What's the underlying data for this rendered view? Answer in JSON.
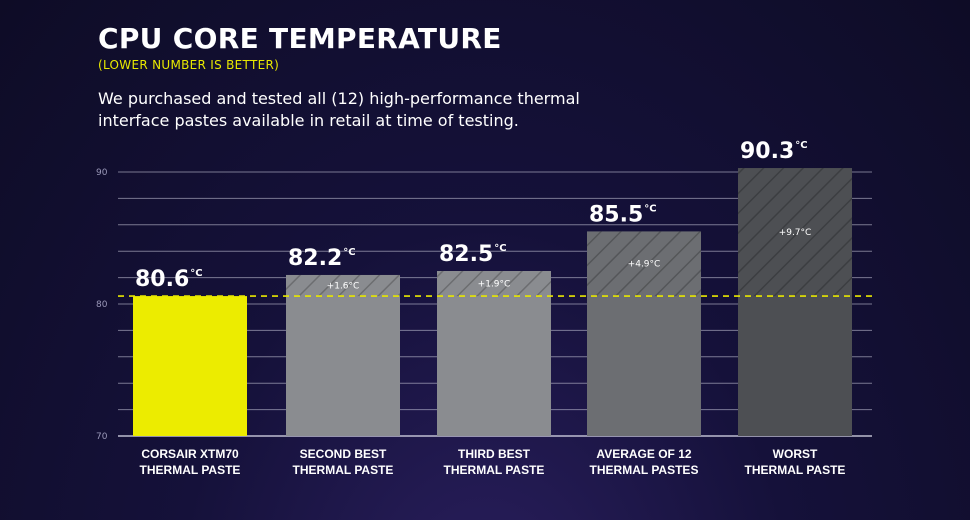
{
  "header": {
    "title": "CPU CORE TEMPERATURE",
    "subtitle": "(LOWER NUMBER IS BETTER)",
    "description": "We purchased and tested all (12) high-performance thermal interface pastes available in retail at time of testing."
  },
  "colors": {
    "highlight_bar": "#ecec00",
    "reference_line": "#e8e800",
    "bar_second": "#8a8c90",
    "bar_third": "#8a8c90",
    "bar_average": "#6c6e72",
    "bar_worst": "#4d4f53",
    "gridline": "#cfcfe0"
  },
  "chart_data": {
    "type": "bar",
    "title": "CPU CORE TEMPERATURE",
    "subtitle": "(LOWER NUMBER IS BETTER)",
    "unit": "°C",
    "ylim": [
      70,
      90
    ],
    "yticks": [
      70,
      80,
      90
    ],
    "grid": true,
    "reference_value": 80.6,
    "categories": [
      [
        "CORSAIR XTM70",
        "THERMAL PASTE"
      ],
      [
        "SECOND BEST",
        "THERMAL PASTE"
      ],
      [
        "THIRD BEST",
        "THERMAL PASTE"
      ],
      [
        "AVERAGE OF 12",
        "THERMAL PASTES"
      ],
      [
        "WORST",
        "THERMAL PASTE"
      ]
    ],
    "values": [
      80.6,
      82.2,
      82.5,
      85.5,
      90.3
    ],
    "value_labels": [
      "80.6",
      "82.2",
      "82.5",
      "85.5",
      "90.3"
    ],
    "differences": [
      "",
      "+1.6°C",
      "+1.9°C",
      "+4.9°C",
      "+9.7°C"
    ]
  }
}
